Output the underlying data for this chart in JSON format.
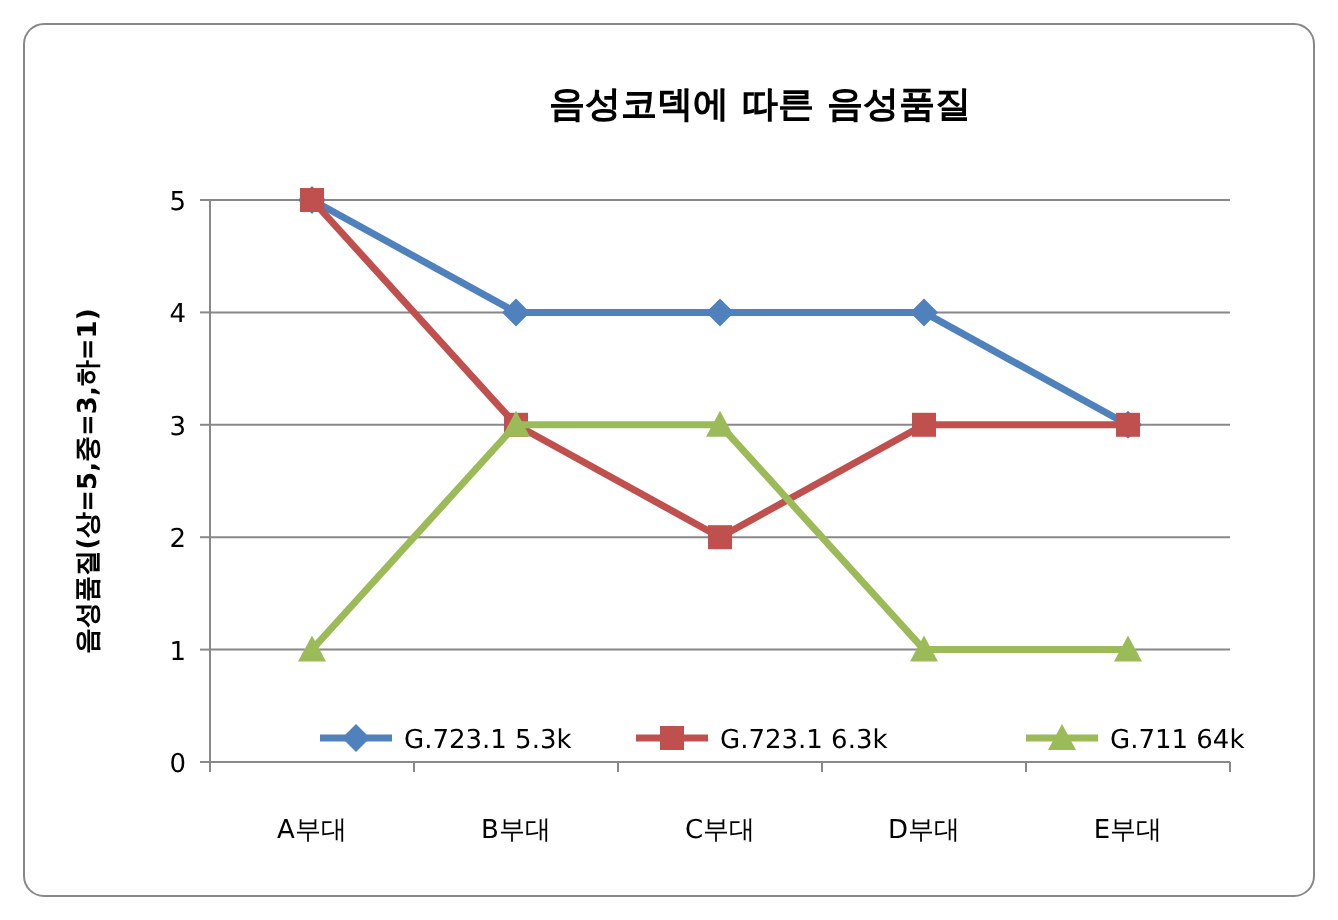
{
  "chart_data": {
    "type": "line",
    "title": "음성코덱에 따른 음성품질",
    "ylabel": "음성품질(상=5,중=3,하=1)",
    "categories": [
      "A부대",
      "B부대",
      "C부대",
      "D부대",
      "E부대"
    ],
    "ylim": [
      0,
      5
    ],
    "yticks": [
      0,
      1,
      2,
      3,
      4,
      5
    ],
    "grid": "y",
    "legend": "bottom",
    "series": [
      {
        "name": "G.723.1 5.3k",
        "color": "#4f81bd",
        "marker": "diamond",
        "values": [
          5,
          4,
          4,
          4,
          3
        ]
      },
      {
        "name": "G.723.1 6.3k",
        "color": "#c0504d",
        "marker": "square",
        "values": [
          5,
          3,
          2,
          3,
          3
        ]
      },
      {
        "name": "G.711 64k",
        "color": "#9bbb59",
        "marker": "triangle",
        "values": [
          1,
          3,
          3,
          1,
          1
        ]
      }
    ]
  }
}
